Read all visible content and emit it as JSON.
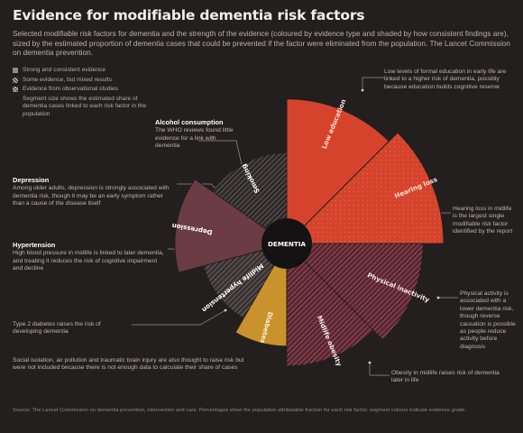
{
  "title": "Evidence for modifiable dementia risk factors",
  "intro": "Selected modifiable risk factors for dementia and the strength of the evidence (coloured by evidence type and shaded by how consistent findings are), sized by the estimated proportion of dementia cases that could be prevented if the factor were eliminated from the population. The Lancet Commission on dementia prevention.",
  "legend": [
    {
      "swatch": "solid",
      "text": "Strong and consistent evidence"
    },
    {
      "swatch": "hatch",
      "text": "Some evidence, but mixed results"
    },
    {
      "swatch": "cross",
      "text": "Evidence from observational studies"
    },
    {
      "swatch": "none",
      "text": "Segment size shows the estimated share of dementia cases linked to each risk factor in the population"
    }
  ],
  "center_label": "DEMENTIA",
  "segments": [
    {
      "label": "Low education",
      "value": 7.5,
      "color": "#d6432c",
      "pattern": "solid",
      "label_color": "#ffe1d2"
    },
    {
      "label": "Hearing loss",
      "value": 9.1,
      "color": "#d6432c",
      "pattern": "dots",
      "label_color": "#ffe1d2"
    },
    {
      "label": "Physical inactivity",
      "value": 6.5,
      "color": "#5e2430",
      "pattern": "hatch",
      "label_color": "#f4e9e2"
    },
    {
      "label": "Midlife obesity",
      "value": 5.0,
      "color": "#5e2430",
      "pattern": "hatch",
      "label_color": "#f4e9e2"
    },
    {
      "label": "Diabetes",
      "value": 3.2,
      "color": "#c9922c",
      "pattern": "solid",
      "label_color": "#fff1d6"
    },
    {
      "label": "Midlife hypertension",
      "value": 2.0,
      "color": "#3a3232",
      "pattern": "hatch",
      "label_color": "#ffffff"
    },
    {
      "label": "Depression",
      "value": 4.0,
      "color": "#6b3c43",
      "pattern": "solid",
      "label_color": "#ffffff"
    },
    {
      "label": "Smoking",
      "value": 2.3,
      "color": "#2e2a29",
      "pattern": "hatch",
      "label_color": "#ffffff"
    }
  ],
  "notes": {
    "alcohol": {
      "heading": "Alcohol consumption",
      "text": "The WHO reviews found little evidence for a link with dementia"
    },
    "depression": {
      "heading": "Depression",
      "text": "Among older adults, depression is strongly associated with dementia risk, though it may be an early symptom rather than a cause of the disease itself"
    },
    "hypertension": {
      "heading": "Hypertension",
      "text": "High blood pressure in midlife is linked to later dementia, and treating it reduces the risk of cognitive impairment and decline"
    },
    "diabetes": {
      "text": "Type 2 diabetes raises the risk of developing dementia"
    },
    "bottom": {
      "text": "Social isolation, air pollution and traumatic brain injury are also thought to raise risk but were not included because there is not enough data to calculate their share of cases"
    },
    "top_right": {
      "text": "Low levels of formal education in early life are linked to a higher risk of dementia, possibly because education builds cognitive reserve"
    },
    "right_mid": {
      "text": "Hearing loss in midlife is the largest single modifiable risk factor identified by the report"
    },
    "right_lower": {
      "text": "Physical activity is associated with a lower dementia risk, though reverse causation is possible as people reduce activity before diagnosis"
    },
    "right_bottom": {
      "text": "Obesity in midlife raises risk of dementia later in life"
    }
  },
  "footnote": "Source: The Lancet Commission on dementia prevention, intervention and care. Percentages show the population attributable fraction for each risk factor; segment colours indicate evidence grade."
}
